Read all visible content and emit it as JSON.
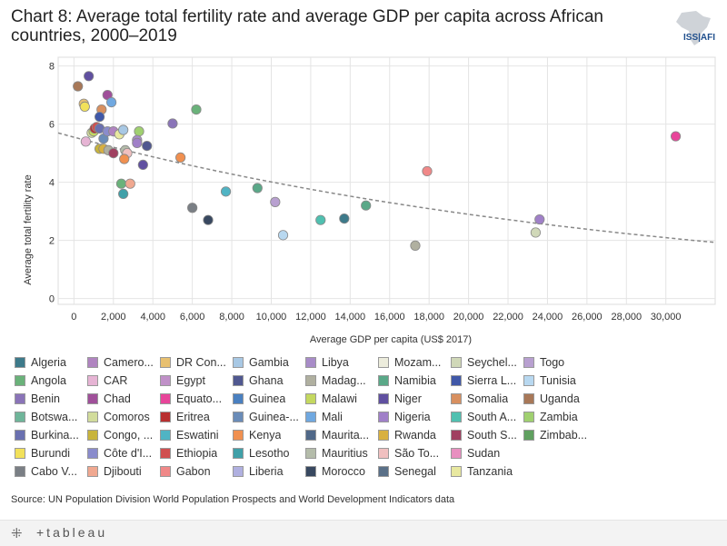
{
  "title": "Chart 8: Average total fertility rate and average GDP per capita across African countries, 2000–2019",
  "logo_text": "ISS|AFI",
  "source": "Source: UN Population Division World Population Prospects and World Development Indicators data",
  "footer": {
    "brand": "+tableau",
    "icon": "tableau-cross-icon"
  },
  "legend": {
    "columns": [
      [
        {
          "name": "Algeria",
          "color": "#3d7a8a"
        },
        {
          "name": "Angola",
          "color": "#6ab27a"
        },
        {
          "name": "Benin",
          "color": "#8a74b8"
        },
        {
          "name": "Botswa...",
          "color": "#6fb59a"
        },
        {
          "name": "Burkina...",
          "color": "#6a70b0"
        },
        {
          "name": "Burundi",
          "color": "#f2e15a"
        },
        {
          "name": "Cabo V...",
          "color": "#7a7f85"
        }
      ],
      [
        {
          "name": "Camero...",
          "color": "#b084c0"
        },
        {
          "name": "CAR",
          "color": "#e6b4d4"
        },
        {
          "name": "Chad",
          "color": "#a0509a"
        },
        {
          "name": "Comoros",
          "color": "#d2dc9c"
        },
        {
          "name": "Congo, ...",
          "color": "#c8b43c"
        },
        {
          "name": "Côte d'I...",
          "color": "#8a8ccc"
        },
        {
          "name": "Djibouti",
          "color": "#f0a890"
        }
      ],
      [
        {
          "name": "DR Con...",
          "color": "#e8c070"
        },
        {
          "name": "Egypt",
          "color": "#c090c8"
        },
        {
          "name": "Equato...",
          "color": "#e8459a"
        },
        {
          "name": "Eritrea",
          "color": "#b83030"
        },
        {
          "name": "Eswatini",
          "color": "#50b4c4"
        },
        {
          "name": "Ethiopia",
          "color": "#d05050"
        },
        {
          "name": "Gabon",
          "color": "#f08888"
        }
      ],
      [
        {
          "name": "Gambia",
          "color": "#a8c8e4"
        },
        {
          "name": "Ghana",
          "color": "#505890"
        },
        {
          "name": "Guinea",
          "color": "#4a80c0"
        },
        {
          "name": "Guinea-...",
          "color": "#6a8cb8"
        },
        {
          "name": "Kenya",
          "color": "#f09050"
        },
        {
          "name": "Lesotho",
          "color": "#40a0a8"
        },
        {
          "name": "Liberia",
          "color": "#b0b0e0"
        }
      ],
      [
        {
          "name": "Libya",
          "color": "#a88cc8"
        },
        {
          "name": "Madag...",
          "color": "#b0b0a0"
        },
        {
          "name": "Malawi",
          "color": "#c4d860"
        },
        {
          "name": "Mali",
          "color": "#70a8e0"
        },
        {
          "name": "Maurita...",
          "color": "#506888"
        },
        {
          "name": "Mauritius",
          "color": "#b4bcaa"
        },
        {
          "name": "Morocco",
          "color": "#384860"
        }
      ],
      [
        {
          "name": "Mozam...",
          "color": "#ececdc"
        },
        {
          "name": "Namibia",
          "color": "#5aa888"
        },
        {
          "name": "Niger",
          "color": "#6050a0"
        },
        {
          "name": "Nigeria",
          "color": "#a080c8"
        },
        {
          "name": "Rwanda",
          "color": "#d8b040"
        },
        {
          "name": "São To...",
          "color": "#f0c0c0"
        },
        {
          "name": "Senegal",
          "color": "#5a7088"
        }
      ],
      [
        {
          "name": "Seychel...",
          "color": "#d0d8b8"
        },
        {
          "name": "Sierra L...",
          "color": "#4058a8"
        },
        {
          "name": "Somalia",
          "color": "#d89060"
        },
        {
          "name": "South A...",
          "color": "#50c0b0"
        },
        {
          "name": "South S...",
          "color": "#a04060"
        },
        {
          "name": "Sudan",
          "color": "#e890c0"
        },
        {
          "name": "Tanzania",
          "color": "#e8e8a0"
        }
      ],
      [
        {
          "name": "Togo",
          "color": "#b8a0d0"
        },
        {
          "name": "Tunisia",
          "color": "#b8d8f0"
        },
        {
          "name": "Uganda",
          "color": "#a87858"
        },
        {
          "name": "Zambia",
          "color": "#a0d070"
        },
        {
          "name": "Zimbab...",
          "color": "#60a060"
        }
      ]
    ]
  },
  "chart_data": {
    "type": "scatter",
    "title": "Chart 8: Average total fertility rate and average GDP per capita across African countries, 2000–2019",
    "xlabel": "Average GDP per capita (US$ 2017)",
    "ylabel": "Average total fertility rate",
    "xlim": [
      -800,
      32500
    ],
    "ylim": [
      -0.2,
      8.3
    ],
    "x_ticks": [
      0,
      2000,
      4000,
      6000,
      8000,
      10000,
      12000,
      14000,
      16000,
      18000,
      20000,
      22000,
      24000,
      26000,
      28000,
      30000
    ],
    "x_tick_labels": [
      "0",
      "2,000",
      "4,000",
      "6,000",
      "8,000",
      "10,000",
      "12,000",
      "14,000",
      "16,000",
      "18,000",
      "20,000",
      "22,000",
      "24,000",
      "26,000",
      "28,000",
      "30,000"
    ],
    "y_ticks": [
      0,
      2,
      4,
      6,
      8
    ],
    "y_tick_labels": [
      "0",
      "2",
      "4",
      "6",
      "8"
    ],
    "grid": true,
    "trend": {
      "type": "exponential",
      "a": 5.55,
      "b": -3.25e-05
    },
    "points": [
      {
        "x": 200,
        "y": 7.3,
        "color": "#a87858"
      },
      {
        "x": 750,
        "y": 7.65,
        "color": "#6050a0"
      },
      {
        "x": 500,
        "y": 6.7,
        "color": "#e8c070"
      },
      {
        "x": 550,
        "y": 6.6,
        "color": "#f2e15a"
      },
      {
        "x": 1700,
        "y": 7.0,
        "color": "#a0509a"
      },
      {
        "x": 1900,
        "y": 6.75,
        "color": "#70a8e0"
      },
      {
        "x": 1400,
        "y": 6.5,
        "color": "#d89060"
      },
      {
        "x": 1300,
        "y": 6.25,
        "color": "#4058a8"
      },
      {
        "x": 6200,
        "y": 6.5,
        "color": "#6ab27a"
      },
      {
        "x": 5000,
        "y": 6.02,
        "color": "#8a74b8"
      },
      {
        "x": 600,
        "y": 5.4,
        "color": "#e6b4d4"
      },
      {
        "x": 900,
        "y": 5.7,
        "color": "#d2dc9c"
      },
      {
        "x": 1000,
        "y": 5.75,
        "color": "#c4d860"
      },
      {
        "x": 1050,
        "y": 5.85,
        "color": "#b83030"
      },
      {
        "x": 1150,
        "y": 5.9,
        "color": "#d05050"
      },
      {
        "x": 1300,
        "y": 5.85,
        "color": "#6a70b0"
      },
      {
        "x": 1500,
        "y": 5.5,
        "color": "#6a8cb8"
      },
      {
        "x": 1700,
        "y": 5.75,
        "color": "#8a8ccc"
      },
      {
        "x": 2000,
        "y": 5.75,
        "color": "#b084c0"
      },
      {
        "x": 2300,
        "y": 5.65,
        "color": "#e8e8a0"
      },
      {
        "x": 2500,
        "y": 5.8,
        "color": "#a8c8e4"
      },
      {
        "x": 3300,
        "y": 5.75,
        "color": "#a0d070"
      },
      {
        "x": 3200,
        "y": 5.45,
        "color": "#a88cc8"
      },
      {
        "x": 3200,
        "y": 5.35,
        "color": "#a080c8"
      },
      {
        "x": 3700,
        "y": 5.25,
        "color": "#505890"
      },
      {
        "x": 1300,
        "y": 5.15,
        "color": "#c8b43c"
      },
      {
        "x": 1500,
        "y": 5.15,
        "color": "#d8b040"
      },
      {
        "x": 1750,
        "y": 5.1,
        "color": "#b0b0a0"
      },
      {
        "x": 2000,
        "y": 5.0,
        "color": "#a04060"
      },
      {
        "x": 2600,
        "y": 5.1,
        "color": "#b4bcaa"
      },
      {
        "x": 2700,
        "y": 5.0,
        "color": "#f0c0c0"
      },
      {
        "x": 2550,
        "y": 4.8,
        "color": "#f09050"
      },
      {
        "x": 5400,
        "y": 4.85,
        "color": "#f09050"
      },
      {
        "x": 3500,
        "y": 4.6,
        "color": "#6050a0"
      },
      {
        "x": 2400,
        "y": 3.95,
        "color": "#6ab27a"
      },
      {
        "x": 2850,
        "y": 3.95,
        "color": "#f0a890"
      },
      {
        "x": 2500,
        "y": 3.6,
        "color": "#40a0a8"
      },
      {
        "x": 7700,
        "y": 3.68,
        "color": "#50b4c4"
      },
      {
        "x": 9300,
        "y": 3.8,
        "color": "#5aa888"
      },
      {
        "x": 6000,
        "y": 3.12,
        "color": "#7a7f85"
      },
      {
        "x": 6800,
        "y": 2.7,
        "color": "#384860"
      },
      {
        "x": 10200,
        "y": 3.32,
        "color": "#b8a0d0"
      },
      {
        "x": 10600,
        "y": 2.18,
        "color": "#b8d8f0"
      },
      {
        "x": 12500,
        "y": 2.7,
        "color": "#50c0b0"
      },
      {
        "x": 13700,
        "y": 2.75,
        "color": "#3d7a8a"
      },
      {
        "x": 14800,
        "y": 3.2,
        "color": "#5aa888"
      },
      {
        "x": 17300,
        "y": 1.82,
        "color": "#b0b0a0"
      },
      {
        "x": 17900,
        "y": 4.38,
        "color": "#f08888"
      },
      {
        "x": 23400,
        "y": 2.27,
        "color": "#d0d8b8"
      },
      {
        "x": 23600,
        "y": 2.72,
        "color": "#a080c8"
      },
      {
        "x": 30500,
        "y": 5.58,
        "color": "#e8459a"
      }
    ]
  }
}
